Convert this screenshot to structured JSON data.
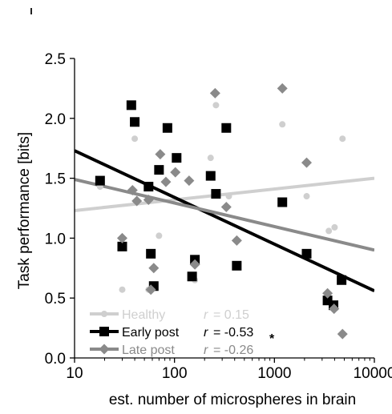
{
  "chart_data": {
    "type": "scatter",
    "xlabel": "est. number of microspheres in brain",
    "ylabel": "Task performance [bits]",
    "xscale": "log",
    "xlim": [
      10,
      10000
    ],
    "ylim": [
      0.0,
      2.5
    ],
    "x_ticks": [
      10,
      100,
      1000,
      10000
    ],
    "x_tick_labels": [
      "10",
      "100",
      "1000",
      "10000"
    ],
    "y_ticks": [
      0.0,
      0.5,
      1.0,
      1.5,
      2.0,
      2.5
    ],
    "y_tick_labels": [
      "0.0",
      "0.5",
      "1.0",
      "1.5",
      "2.0",
      "2.5"
    ],
    "grid": false,
    "legend_position": "bottom-left",
    "series": [
      {
        "name": "Healthy",
        "r_label": "r",
        "r_value": "= 0.15",
        "significance": "",
        "color": "#cfcfcf",
        "marker": "circle",
        "points": [
          [
            18,
            1.43
          ],
          [
            30,
            0.57
          ],
          [
            40,
            1.83
          ],
          [
            55,
            0.57
          ],
          [
            70,
            1.02
          ],
          [
            160,
            0.65
          ],
          [
            230,
            1.67
          ],
          [
            260,
            2.11
          ],
          [
            350,
            1.35
          ],
          [
            1200,
            1.95
          ],
          [
            2100,
            1.35
          ],
          [
            3500,
            1.06
          ],
          [
            4000,
            1.09
          ],
          [
            4800,
            1.83
          ]
        ],
        "fit": [
          [
            10,
            1.23
          ],
          [
            10000,
            1.5
          ]
        ]
      },
      {
        "name": "Early post",
        "r_label": "r",
        "r_value": "= -0.53",
        "significance": "*",
        "color": "#000000",
        "marker": "square",
        "points": [
          [
            18,
            1.48
          ],
          [
            30,
            0.93
          ],
          [
            37,
            2.11
          ],
          [
            40,
            1.97
          ],
          [
            55,
            1.43
          ],
          [
            58,
            0.87
          ],
          [
            62,
            0.6
          ],
          [
            70,
            1.57
          ],
          [
            85,
            1.92
          ],
          [
            105,
            1.67
          ],
          [
            150,
            0.68
          ],
          [
            160,
            0.82
          ],
          [
            230,
            1.52
          ],
          [
            260,
            1.37
          ],
          [
            330,
            1.92
          ],
          [
            420,
            0.77
          ],
          [
            1200,
            1.3
          ],
          [
            2100,
            0.87
          ],
          [
            3400,
            0.48
          ],
          [
            3900,
            0.44
          ],
          [
            4700,
            0.65
          ]
        ],
        "fit": [
          [
            10,
            1.73
          ],
          [
            10000,
            0.56
          ]
        ]
      },
      {
        "name": "Late post",
        "r_label": "r",
        "r_value": "= -0.26",
        "significance": "",
        "color": "#8a8a8a",
        "marker": "diamond",
        "points": [
          [
            30,
            1.0
          ],
          [
            38,
            1.4
          ],
          [
            42,
            1.31
          ],
          [
            55,
            1.32
          ],
          [
            58,
            0.57
          ],
          [
            62,
            0.75
          ],
          [
            72,
            1.7
          ],
          [
            82,
            1.47
          ],
          [
            102,
            1.55
          ],
          [
            140,
            1.48
          ],
          [
            160,
            0.78
          ],
          [
            255,
            2.21
          ],
          [
            330,
            1.26
          ],
          [
            420,
            0.98
          ],
          [
            1200,
            2.25
          ],
          [
            2100,
            1.63
          ],
          [
            3400,
            0.54
          ],
          [
            3950,
            0.41
          ],
          [
            4800,
            0.2
          ]
        ],
        "fit": [
          [
            10,
            1.49
          ],
          [
            10000,
            0.9
          ]
        ]
      }
    ]
  }
}
